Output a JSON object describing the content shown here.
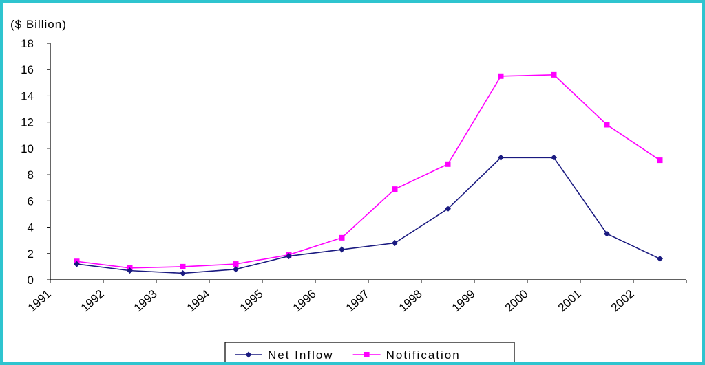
{
  "chart_data": {
    "type": "line",
    "unit_label": "($   Billion)",
    "y_ticks": [
      "0",
      "2",
      "4",
      "6",
      "8",
      "10",
      "12",
      "14",
      "16",
      "18"
    ],
    "ylim": [
      0,
      18
    ],
    "x_ticks": [
      "1991",
      "1992",
      "1993",
      "1994",
      "1995",
      "1996",
      "1997",
      "1998",
      "1999",
      "2000",
      "2001",
      "2002"
    ],
    "categories": [
      "1991",
      "1992",
      "1993",
      "1994",
      "1995",
      "1996",
      "1997",
      "1998",
      "1999",
      "2000",
      "2001",
      "2002"
    ],
    "series": [
      {
        "name": "Net Inflow",
        "color": "#1a1a80",
        "marker": "diamond",
        "values": [
          1.2,
          0.7,
          0.5,
          0.8,
          1.8,
          2.3,
          2.8,
          5.4,
          9.3,
          9.3,
          3.5,
          1.6
        ]
      },
      {
        "name": "Notification",
        "color": "#ff00ff",
        "marker": "square",
        "values": [
          1.4,
          0.9,
          1.0,
          1.2,
          1.9,
          3.2,
          6.9,
          8.8,
          15.5,
          15.6,
          11.8,
          9.1
        ]
      }
    ],
    "grid": false,
    "legend_position": "bottom-center"
  }
}
